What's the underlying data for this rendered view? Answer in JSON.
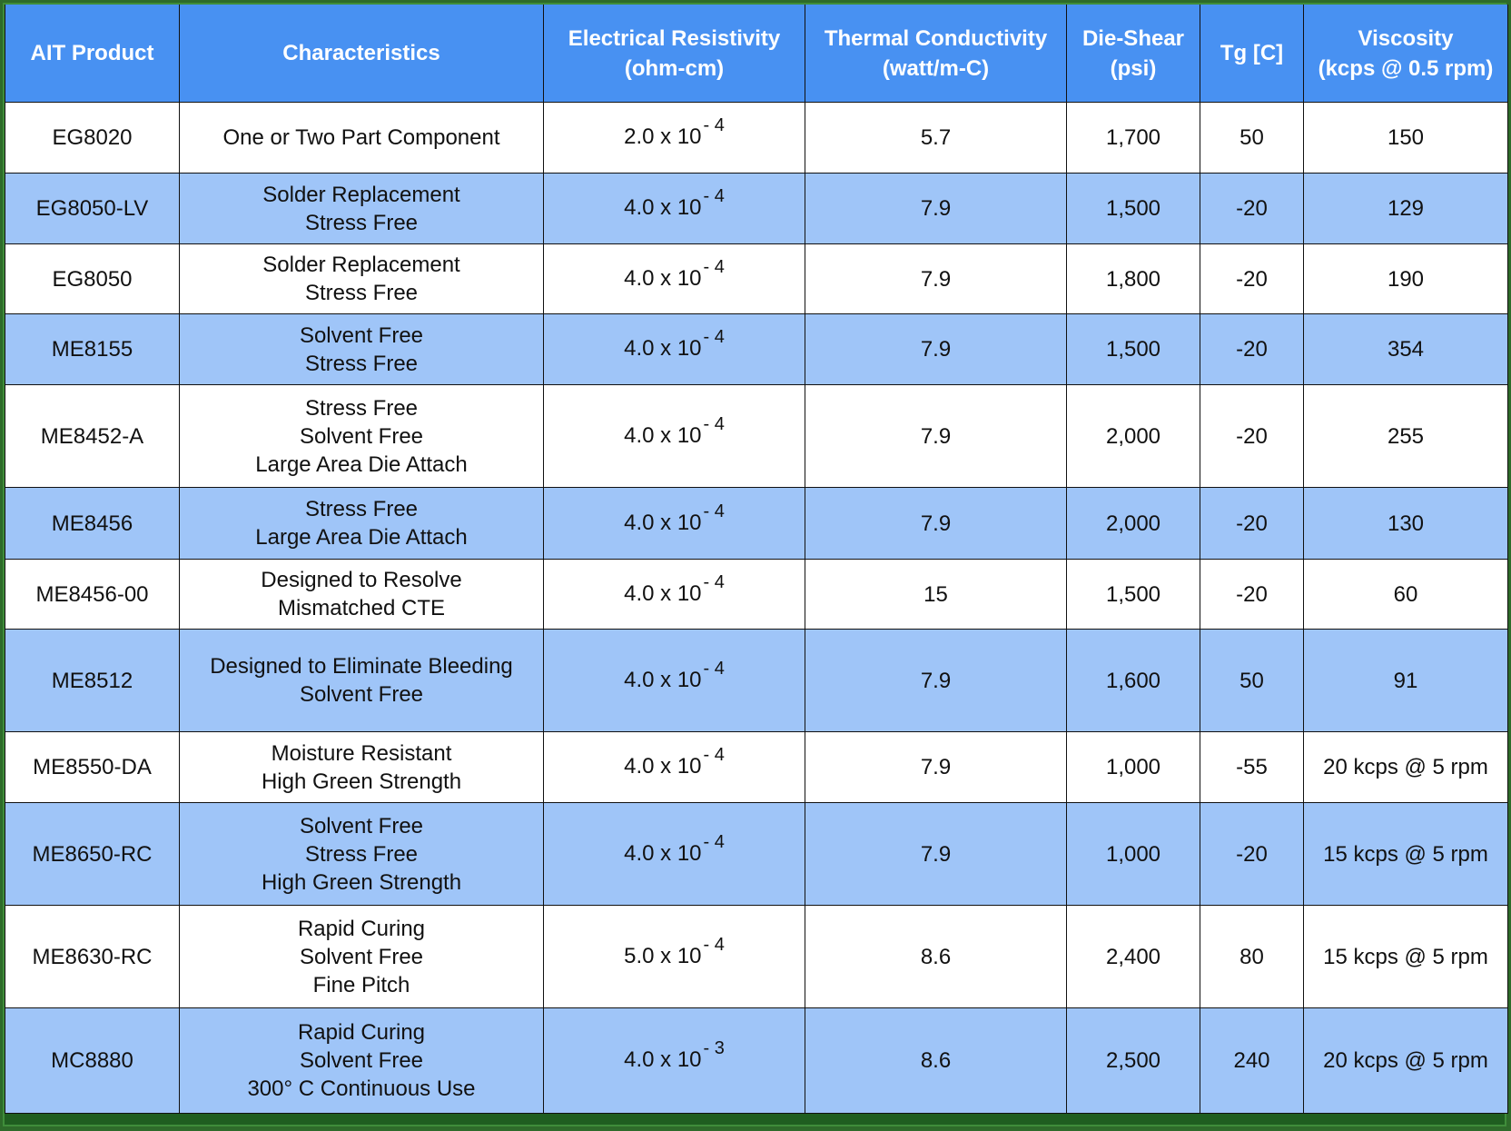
{
  "colors": {
    "header_bg": "#4891f2",
    "row_alt_bg": "#9fc5f8",
    "row_bg": "#ffffff",
    "frame": "#1f5e20"
  },
  "headers": [
    [
      "AIT Product"
    ],
    [
      "Characteristics"
    ],
    [
      "Electrical Resistivity",
      "(ohm-cm)"
    ],
    [
      "Thermal Conductivity",
      "(watt/m-C)"
    ],
    [
      "Die-Shear",
      "(psi)"
    ],
    [
      "Tg [C]"
    ],
    [
      "Viscosity",
      "(kcps @ 0.5 rpm)"
    ]
  ],
  "rows": [
    {
      "product": "EG8020",
      "characteristics": [
        "One or Two Part Component"
      ],
      "resistivity": "2.0 x 10",
      "exponent": "- 4",
      "thermal": "5.7",
      "die_shear": "1,700",
      "tg": "50",
      "viscosity": "150"
    },
    {
      "product": "EG8050-LV",
      "characteristics": [
        "Solder Replacement",
        "Stress Free"
      ],
      "resistivity": "4.0 x 10",
      "exponent": "- 4",
      "thermal": "7.9",
      "die_shear": "1,500",
      "tg": "-20",
      "viscosity": "129"
    },
    {
      "product": "EG8050",
      "characteristics": [
        "Solder Replacement",
        "Stress Free"
      ],
      "resistivity": "4.0 x 10",
      "exponent": "- 4",
      "thermal": "7.9",
      "die_shear": "1,800",
      "tg": "-20",
      "viscosity": "190"
    },
    {
      "product": "ME8155",
      "characteristics": [
        "Solvent Free",
        "Stress Free"
      ],
      "resistivity": "4.0 x 10",
      "exponent": "- 4",
      "thermal": "7.9",
      "die_shear": "1,500",
      "tg": "-20",
      "viscosity": "354"
    },
    {
      "product": "ME8452-A",
      "characteristics": [
        "Stress Free",
        "Solvent Free",
        "Large Area Die Attach"
      ],
      "resistivity": "4.0 x 10",
      "exponent": "- 4",
      "thermal": "7.9",
      "die_shear": "2,000",
      "tg": "-20",
      "viscosity": "255"
    },
    {
      "product": "ME8456",
      "characteristics": [
        "Stress Free",
        "Large Area Die Attach"
      ],
      "resistivity": "4.0 x 10",
      "exponent": "- 4",
      "thermal": "7.9",
      "die_shear": "2,000",
      "tg": "-20",
      "viscosity": "130"
    },
    {
      "product": "ME8456-00",
      "characteristics": [
        "Designed to Resolve",
        "Mismatched CTE"
      ],
      "resistivity": "4.0 x 10",
      "exponent": "- 4",
      "thermal": "15",
      "die_shear": "1,500",
      "tg": "-20",
      "viscosity": "60"
    },
    {
      "product": "ME8512",
      "characteristics": [
        "Designed to Eliminate Bleeding",
        "Solvent Free"
      ],
      "resistivity": "4.0 x 10",
      "exponent": "- 4",
      "thermal": "7.9",
      "die_shear": "1,600",
      "tg": "50",
      "viscosity": "91"
    },
    {
      "product": "ME8550-DA",
      "characteristics": [
        "Moisture Resistant",
        "High Green Strength"
      ],
      "resistivity": "4.0 x 10",
      "exponent": "- 4",
      "thermal": "7.9",
      "die_shear": "1,000",
      "tg": "-55",
      "viscosity": "20 kcps @ 5 rpm"
    },
    {
      "product": "ME8650-RC",
      "characteristics": [
        "Solvent Free",
        "Stress Free",
        "High Green Strength"
      ],
      "resistivity": "4.0 x 10",
      "exponent": "- 4",
      "thermal": "7.9",
      "die_shear": "1,000",
      "tg": "-20",
      "viscosity": "15 kcps @ 5 rpm"
    },
    {
      "product": "ME8630-RC",
      "characteristics": [
        "Rapid Curing",
        "Solvent Free",
        "Fine Pitch"
      ],
      "resistivity": "5.0 x 10",
      "exponent": "- 4",
      "thermal": "8.6",
      "die_shear": "2,400",
      "tg": "80",
      "viscosity": "15 kcps @ 5 rpm"
    },
    {
      "product": "MC8880",
      "characteristics": [
        "Rapid Curing",
        "Solvent Free",
        "300° C Continuous Use"
      ],
      "resistivity": "4.0 x 10",
      "exponent": "- 3",
      "thermal": "8.6",
      "die_shear": "2,500",
      "tg": "240",
      "viscosity": "20 kcps @ 5 rpm"
    }
  ]
}
